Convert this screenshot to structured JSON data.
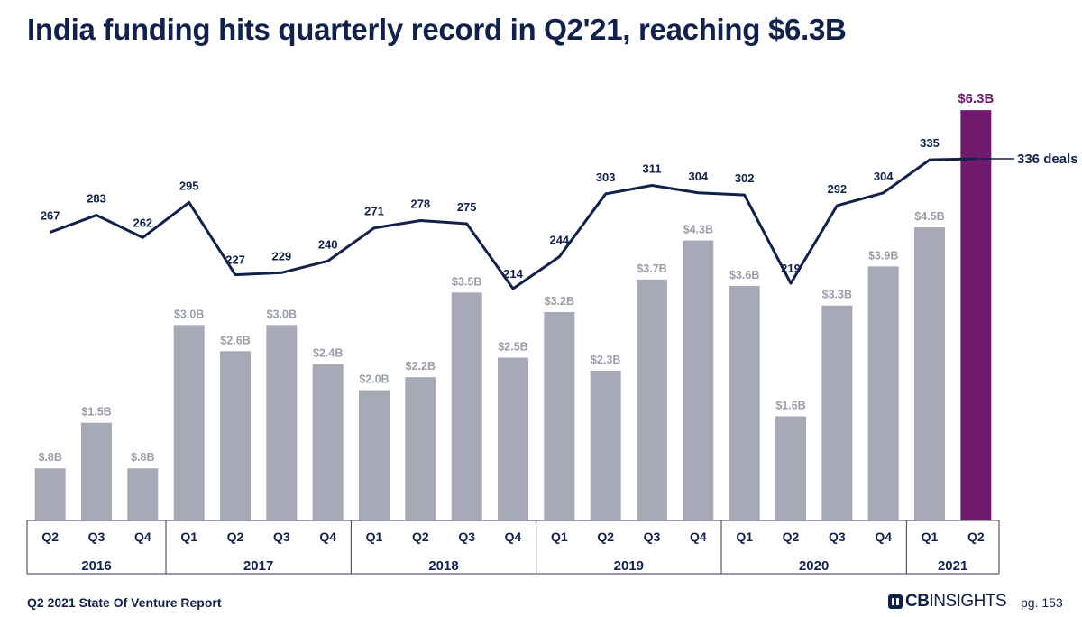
{
  "title": "India funding hits quarterly record in Q2'21, reaching $6.3B",
  "footer": {
    "report": "Q2 2021 State Of Venture Report",
    "page": "pg. 153"
  },
  "logo": {
    "bold": "CB",
    "thin": "INSIGHTS"
  },
  "colors": {
    "bar": "#a7aab6",
    "highlight": "#701a6d",
    "line": "#12214a",
    "label": "#9a9eab",
    "text": "#12214a"
  },
  "chart_data": {
    "type": "bar+line",
    "title": "India funding hits quarterly record in Q2'21, reaching $6.3B",
    "categories": [
      "Q2",
      "Q3",
      "Q4",
      "Q1",
      "Q2",
      "Q3",
      "Q4",
      "Q1",
      "Q2",
      "Q3",
      "Q4",
      "Q1",
      "Q2",
      "Q3",
      "Q4",
      "Q1",
      "Q2",
      "Q3",
      "Q4",
      "Q1",
      "Q2"
    ],
    "years": [
      {
        "label": "2016",
        "count": 3
      },
      {
        "label": "2017",
        "count": 4
      },
      {
        "label": "2018",
        "count": 4
      },
      {
        "label": "2019",
        "count": 4
      },
      {
        "label": "2020",
        "count": 4
      },
      {
        "label": "2021",
        "count": 2
      }
    ],
    "series": [
      {
        "name": "Funding ($B)",
        "type": "bar",
        "values": [
          0.8,
          1.5,
          0.8,
          3.0,
          2.6,
          3.0,
          2.4,
          2.0,
          2.2,
          3.5,
          2.5,
          3.2,
          2.3,
          3.7,
          4.3,
          3.6,
          1.6,
          3.3,
          3.9,
          4.5,
          6.3
        ],
        "labels": [
          "$.8B",
          "$1.5B",
          "$.8B",
          "$3.0B",
          "$2.6B",
          "$3.0B",
          "$2.4B",
          "$2.0B",
          "$2.2B",
          "$3.5B",
          "$2.5B",
          "$3.2B",
          "$2.3B",
          "$3.7B",
          "$4.3B",
          "$3.6B",
          "$1.6B",
          "$3.3B",
          "$3.9B",
          "$4.5B",
          "$6.3B"
        ],
        "highlight_index": 20
      },
      {
        "name": "Deals",
        "type": "line",
        "values": [
          267,
          283,
          262,
          295,
          227,
          229,
          240,
          271,
          278,
          275,
          214,
          244,
          303,
          311,
          304,
          302,
          219,
          292,
          304,
          335,
          336
        ],
        "end_label": "336 deals"
      }
    ],
    "ylim_funding": [
      0,
      6.6
    ],
    "ylim_deals": [
      0,
      336
    ]
  }
}
